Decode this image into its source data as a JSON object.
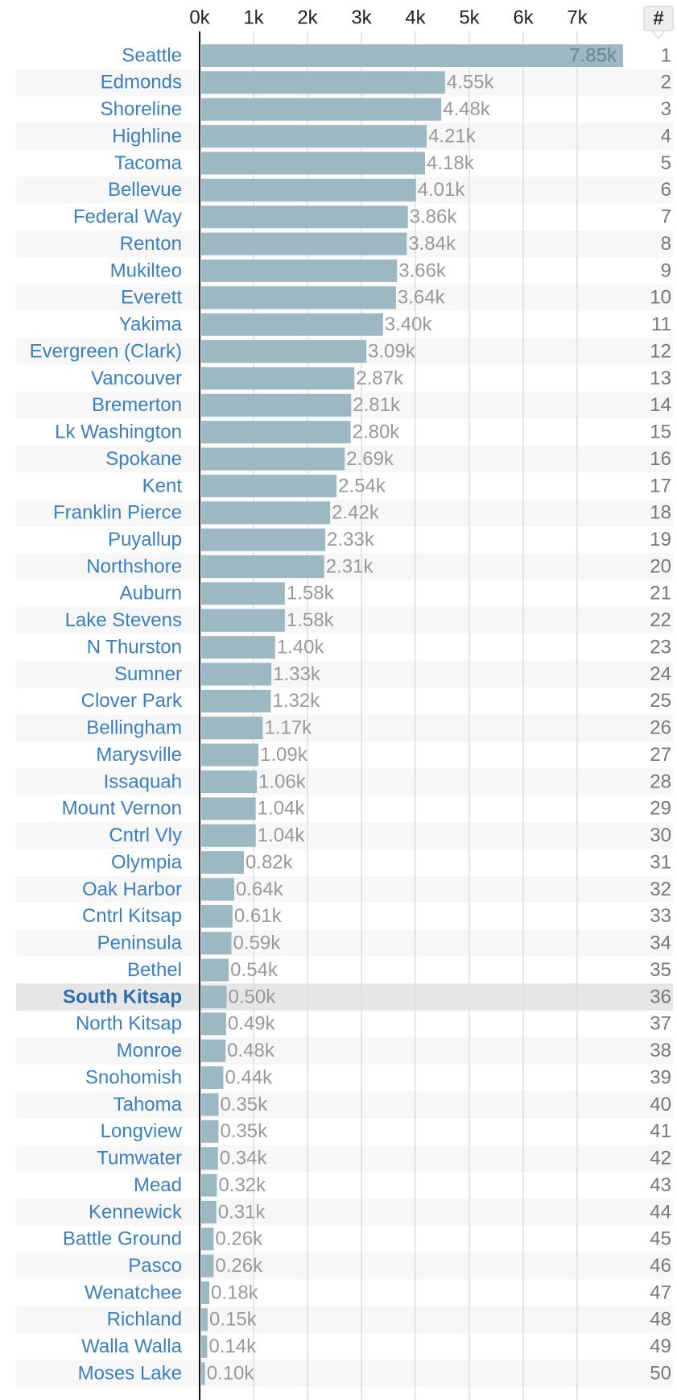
{
  "chart_data": {
    "type": "bar",
    "orientation": "horizontal",
    "categories": [
      "Seattle",
      "Edmonds",
      "Shoreline",
      "Highline",
      "Tacoma",
      "Bellevue",
      "Federal Way",
      "Renton",
      "Mukilteo",
      "Everett",
      "Yakima",
      "Evergreen (Clark)",
      "Vancouver",
      "Bremerton",
      "Lk Washington",
      "Spokane",
      "Kent",
      "Franklin Pierce",
      "Puyallup",
      "Northshore",
      "Auburn",
      "Lake Stevens",
      "N Thurston",
      "Sumner",
      "Clover Park",
      "Bellingham",
      "Marysville",
      "Issaquah",
      "Mount Vernon",
      "Cntrl Vly",
      "Olympia",
      "Oak Harbor",
      "Cntrl Kitsap",
      "Peninsula",
      "Bethel",
      "South Kitsap",
      "North Kitsap",
      "Monroe",
      "Snohomish",
      "Tahoma",
      "Longview",
      "Tumwater",
      "Mead",
      "Kennewick",
      "Battle Ground",
      "Pasco",
      "Wenatchee",
      "Richland",
      "Walla Walla",
      "Moses Lake"
    ],
    "values": [
      7.85,
      4.55,
      4.48,
      4.21,
      4.18,
      4.01,
      3.86,
      3.84,
      3.66,
      3.64,
      3.4,
      3.09,
      2.87,
      2.81,
      2.8,
      2.69,
      2.54,
      2.42,
      2.33,
      2.31,
      1.58,
      1.58,
      1.4,
      1.33,
      1.32,
      1.17,
      1.09,
      1.06,
      1.04,
      1.04,
      0.82,
      0.64,
      0.61,
      0.59,
      0.54,
      0.5,
      0.49,
      0.48,
      0.44,
      0.35,
      0.35,
      0.34,
      0.32,
      0.31,
      0.26,
      0.26,
      0.18,
      0.15,
      0.14,
      0.1
    ],
    "value_labels": [
      "7.85k",
      "4.55k",
      "4.48k",
      "4.21k",
      "4.18k",
      "4.01k",
      "3.86k",
      "3.84k",
      "3.66k",
      "3.64k",
      "3.40k",
      "3.09k",
      "2.87k",
      "2.81k",
      "2.80k",
      "2.69k",
      "2.54k",
      "2.42k",
      "2.33k",
      "2.31k",
      "1.58k",
      "1.58k",
      "1.40k",
      "1.33k",
      "1.32k",
      "1.17k",
      "1.09k",
      "1.06k",
      "1.04k",
      "1.04k",
      "0.82k",
      "0.64k",
      "0.61k",
      "0.59k",
      "0.54k",
      "0.50k",
      "0.49k",
      "0.48k",
      "0.44k",
      "0.35k",
      "0.35k",
      "0.34k",
      "0.32k",
      "0.31k",
      "0.26k",
      "0.26k",
      "0.18k",
      "0.15k",
      "0.14k",
      "0.10k"
    ],
    "rank_header": "#",
    "ranks": [
      1,
      2,
      3,
      4,
      5,
      6,
      7,
      8,
      9,
      10,
      11,
      12,
      13,
      14,
      15,
      16,
      17,
      18,
      19,
      20,
      21,
      22,
      23,
      24,
      25,
      26,
      27,
      28,
      29,
      30,
      31,
      32,
      33,
      34,
      35,
      36,
      37,
      38,
      39,
      40,
      41,
      42,
      43,
      44,
      45,
      46,
      47,
      48,
      49,
      50
    ],
    "highlight": "South Kitsap",
    "color": "#9bb8c3",
    "xlim": [
      0,
      8
    ],
    "xticks": [
      {
        "value": 0,
        "label": "0k"
      },
      {
        "value": 1,
        "label": "1k"
      },
      {
        "value": 2,
        "label": "2k"
      },
      {
        "value": 3,
        "label": "3k"
      },
      {
        "value": 4,
        "label": "4k"
      },
      {
        "value": 5,
        "label": "5k"
      },
      {
        "value": 6,
        "label": "6k"
      },
      {
        "value": 7,
        "label": "7k"
      }
    ],
    "grid": true
  }
}
